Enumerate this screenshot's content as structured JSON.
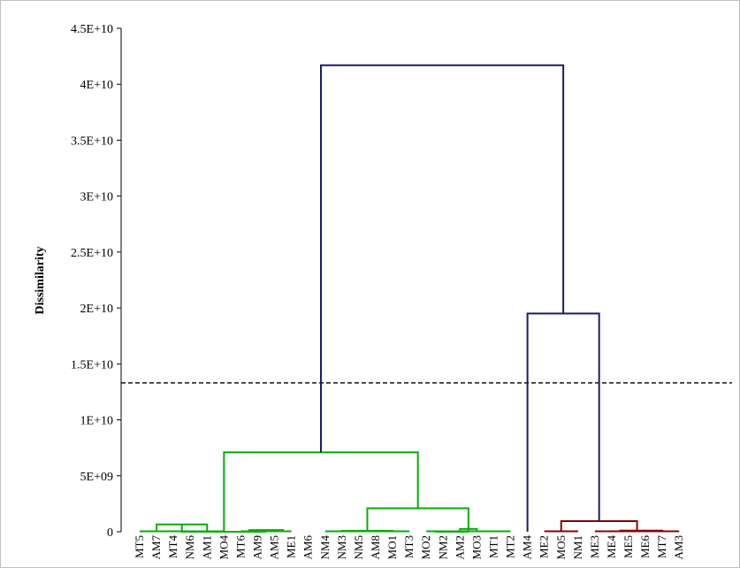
{
  "chart_data": {
    "type": "dendrogram",
    "ylabel": "Dissimilarity",
    "ylim": [
      0,
      45000000000
    ],
    "yticks": [
      {
        "value": 0,
        "label": "0"
      },
      {
        "value": 5000000000,
        "label": "5E+09"
      },
      {
        "value": 10000000000,
        "label": "1E+10"
      },
      {
        "value": 15000000000,
        "label": "1.5E+10"
      },
      {
        "value": 20000000000,
        "label": "2E+10"
      },
      {
        "value": 25000000000,
        "label": "2.5E+10"
      },
      {
        "value": 30000000000,
        "label": "3E+10"
      },
      {
        "value": 35000000000,
        "label": "3.5E+10"
      },
      {
        "value": 40000000000,
        "label": "4E+10"
      },
      {
        "value": 45000000000,
        "label": "4.5E+10"
      }
    ],
    "leaves": [
      "MT5",
      "AM7",
      "MT4",
      "NM6",
      "AM1",
      "MO4",
      "MT6",
      "AM9",
      "AM5",
      "ME1",
      "AM6",
      "NM4",
      "NM3",
      "NM5",
      "AM8",
      "MO1",
      "MT3",
      "MO2",
      "NM2",
      "AM2",
      "MO3",
      "MT1",
      "MT2",
      "AM4",
      "ME2",
      "MO5",
      "NM1",
      "ME3",
      "ME4",
      "ME5",
      "ME6",
      "MT7",
      "AM3"
    ],
    "truncation_line": 13300000000,
    "colors": {
      "cluster_1": "#00b000",
      "cluster_2": "#8b0000",
      "root": "#1a1a6e",
      "cut_line": "#000000"
    },
    "merges": [
      {
        "left_leaves": [
          0,
          1,
          2
        ],
        "right_leaves": [
          3,
          4,
          5
        ],
        "height": 650000000,
        "color": "cluster_1"
      },
      {
        "left_leaves": [
          0,
          1,
          2,
          3,
          4,
          5
        ],
        "right_leaves": [
          6,
          7,
          8,
          9
        ],
        "height": 0,
        "color": "cluster_1"
      },
      {
        "left_leaves": [
          6,
          7
        ],
        "right_leaves": [
          8,
          9
        ],
        "height": 150000000,
        "color": "cluster_1"
      },
      {
        "left_leaves": [
          11,
          12,
          13
        ],
        "right_leaves": [
          14,
          15,
          16
        ],
        "height": 80000000,
        "color": "cluster_1"
      },
      {
        "left_leaves": [
          17,
          18
        ],
        "right_leaves": [
          19,
          20
        ],
        "height": 0,
        "color": "cluster_1"
      },
      {
        "left_leaves": [
          19
        ],
        "right_leaves": [
          20
        ],
        "height": 250000000,
        "color": "cluster_1"
      },
      {
        "left_leaves": [
          11,
          12,
          13,
          14,
          15,
          16
        ],
        "right_leaves": [
          17,
          18,
          19,
          20,
          21,
          22
        ],
        "height": 2100000000,
        "color": "cluster_1"
      },
      {
        "left_leaves": [
          0,
          1,
          2,
          3,
          4,
          5,
          6,
          7,
          8,
          9,
          10
        ],
        "right_leaves": [
          11,
          12,
          13,
          14,
          15,
          16,
          17,
          18,
          19,
          20,
          21,
          22
        ],
        "height": 7100000000,
        "color": "cluster_1"
      },
      {
        "left_leaves": [
          24,
          25,
          26
        ],
        "right_leaves": [
          27,
          28,
          29,
          30,
          31,
          32
        ],
        "height": 950000000,
        "color": "cluster_2"
      },
      {
        "left_leaves": [
          28,
          29
        ],
        "right_leaves": [
          30,
          31,
          32
        ],
        "height": 100000000,
        "color": "cluster_2"
      },
      {
        "left_leaves": [
          23
        ],
        "right_leaves": [
          24,
          25,
          26,
          27,
          28,
          29,
          30,
          31,
          32
        ],
        "height": 19500000000,
        "color": "root"
      },
      {
        "left_leaves": [
          0,
          1,
          2,
          3,
          4,
          5,
          6,
          7,
          8,
          9,
          10,
          11,
          12,
          13,
          14,
          15,
          16,
          17,
          18,
          19,
          20,
          21,
          22
        ],
        "right_leaves": [
          23,
          24,
          25,
          26,
          27,
          28,
          29,
          30,
          31,
          32
        ],
        "height": 41700000000,
        "color": "root"
      }
    ]
  }
}
